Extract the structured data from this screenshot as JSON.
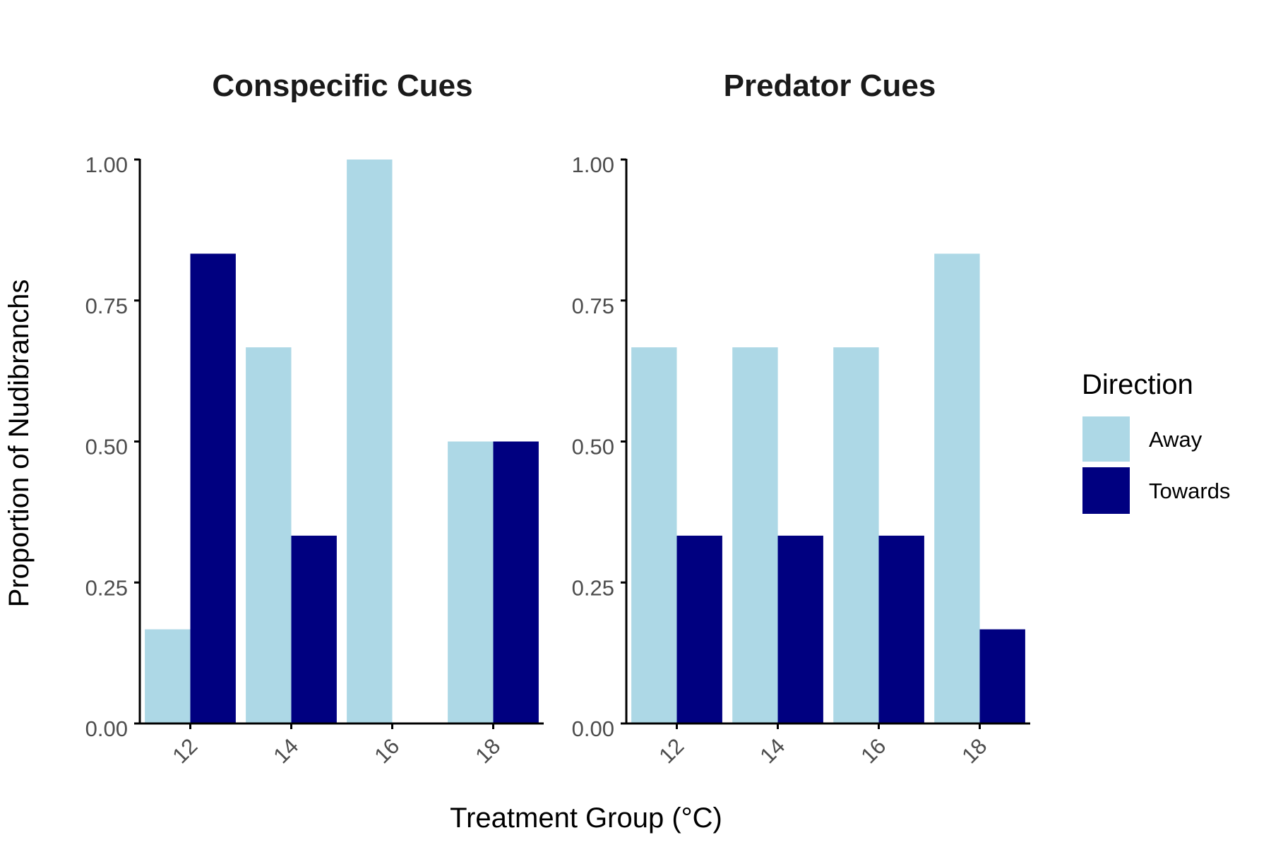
{
  "chart_data": {
    "type": "bar",
    "xlabel": "Treatment Group (°C)",
    "ylabel": "Proportion of Nudibranchs",
    "ylim": [
      0,
      1
    ],
    "yticks": [
      "0.00",
      "0.25",
      "0.50",
      "0.75",
      "1.00"
    ],
    "ytick_values": [
      0,
      0.25,
      0.5,
      0.75,
      1
    ],
    "categories": [
      "12",
      "14",
      "16",
      "18"
    ],
    "legend": {
      "title": "Direction",
      "placement": "right",
      "entries": [
        {
          "name": "Away",
          "color": "#add8e6"
        },
        {
          "name": "Towards",
          "color": "#000080"
        }
      ]
    },
    "panels": [
      {
        "title": "Conspecific Cues",
        "series": [
          {
            "name": "Away",
            "values": [
              0.167,
              0.667,
              1.0,
              0.5
            ]
          },
          {
            "name": "Towards",
            "values": [
              0.833,
              0.333,
              0.0,
              0.5
            ]
          }
        ]
      },
      {
        "title": "Predator Cues",
        "series": [
          {
            "name": "Away",
            "values": [
              0.667,
              0.667,
              0.667,
              0.833
            ]
          },
          {
            "name": "Towards",
            "values": [
              0.333,
              0.333,
              0.333,
              0.167
            ]
          }
        ]
      }
    ]
  }
}
